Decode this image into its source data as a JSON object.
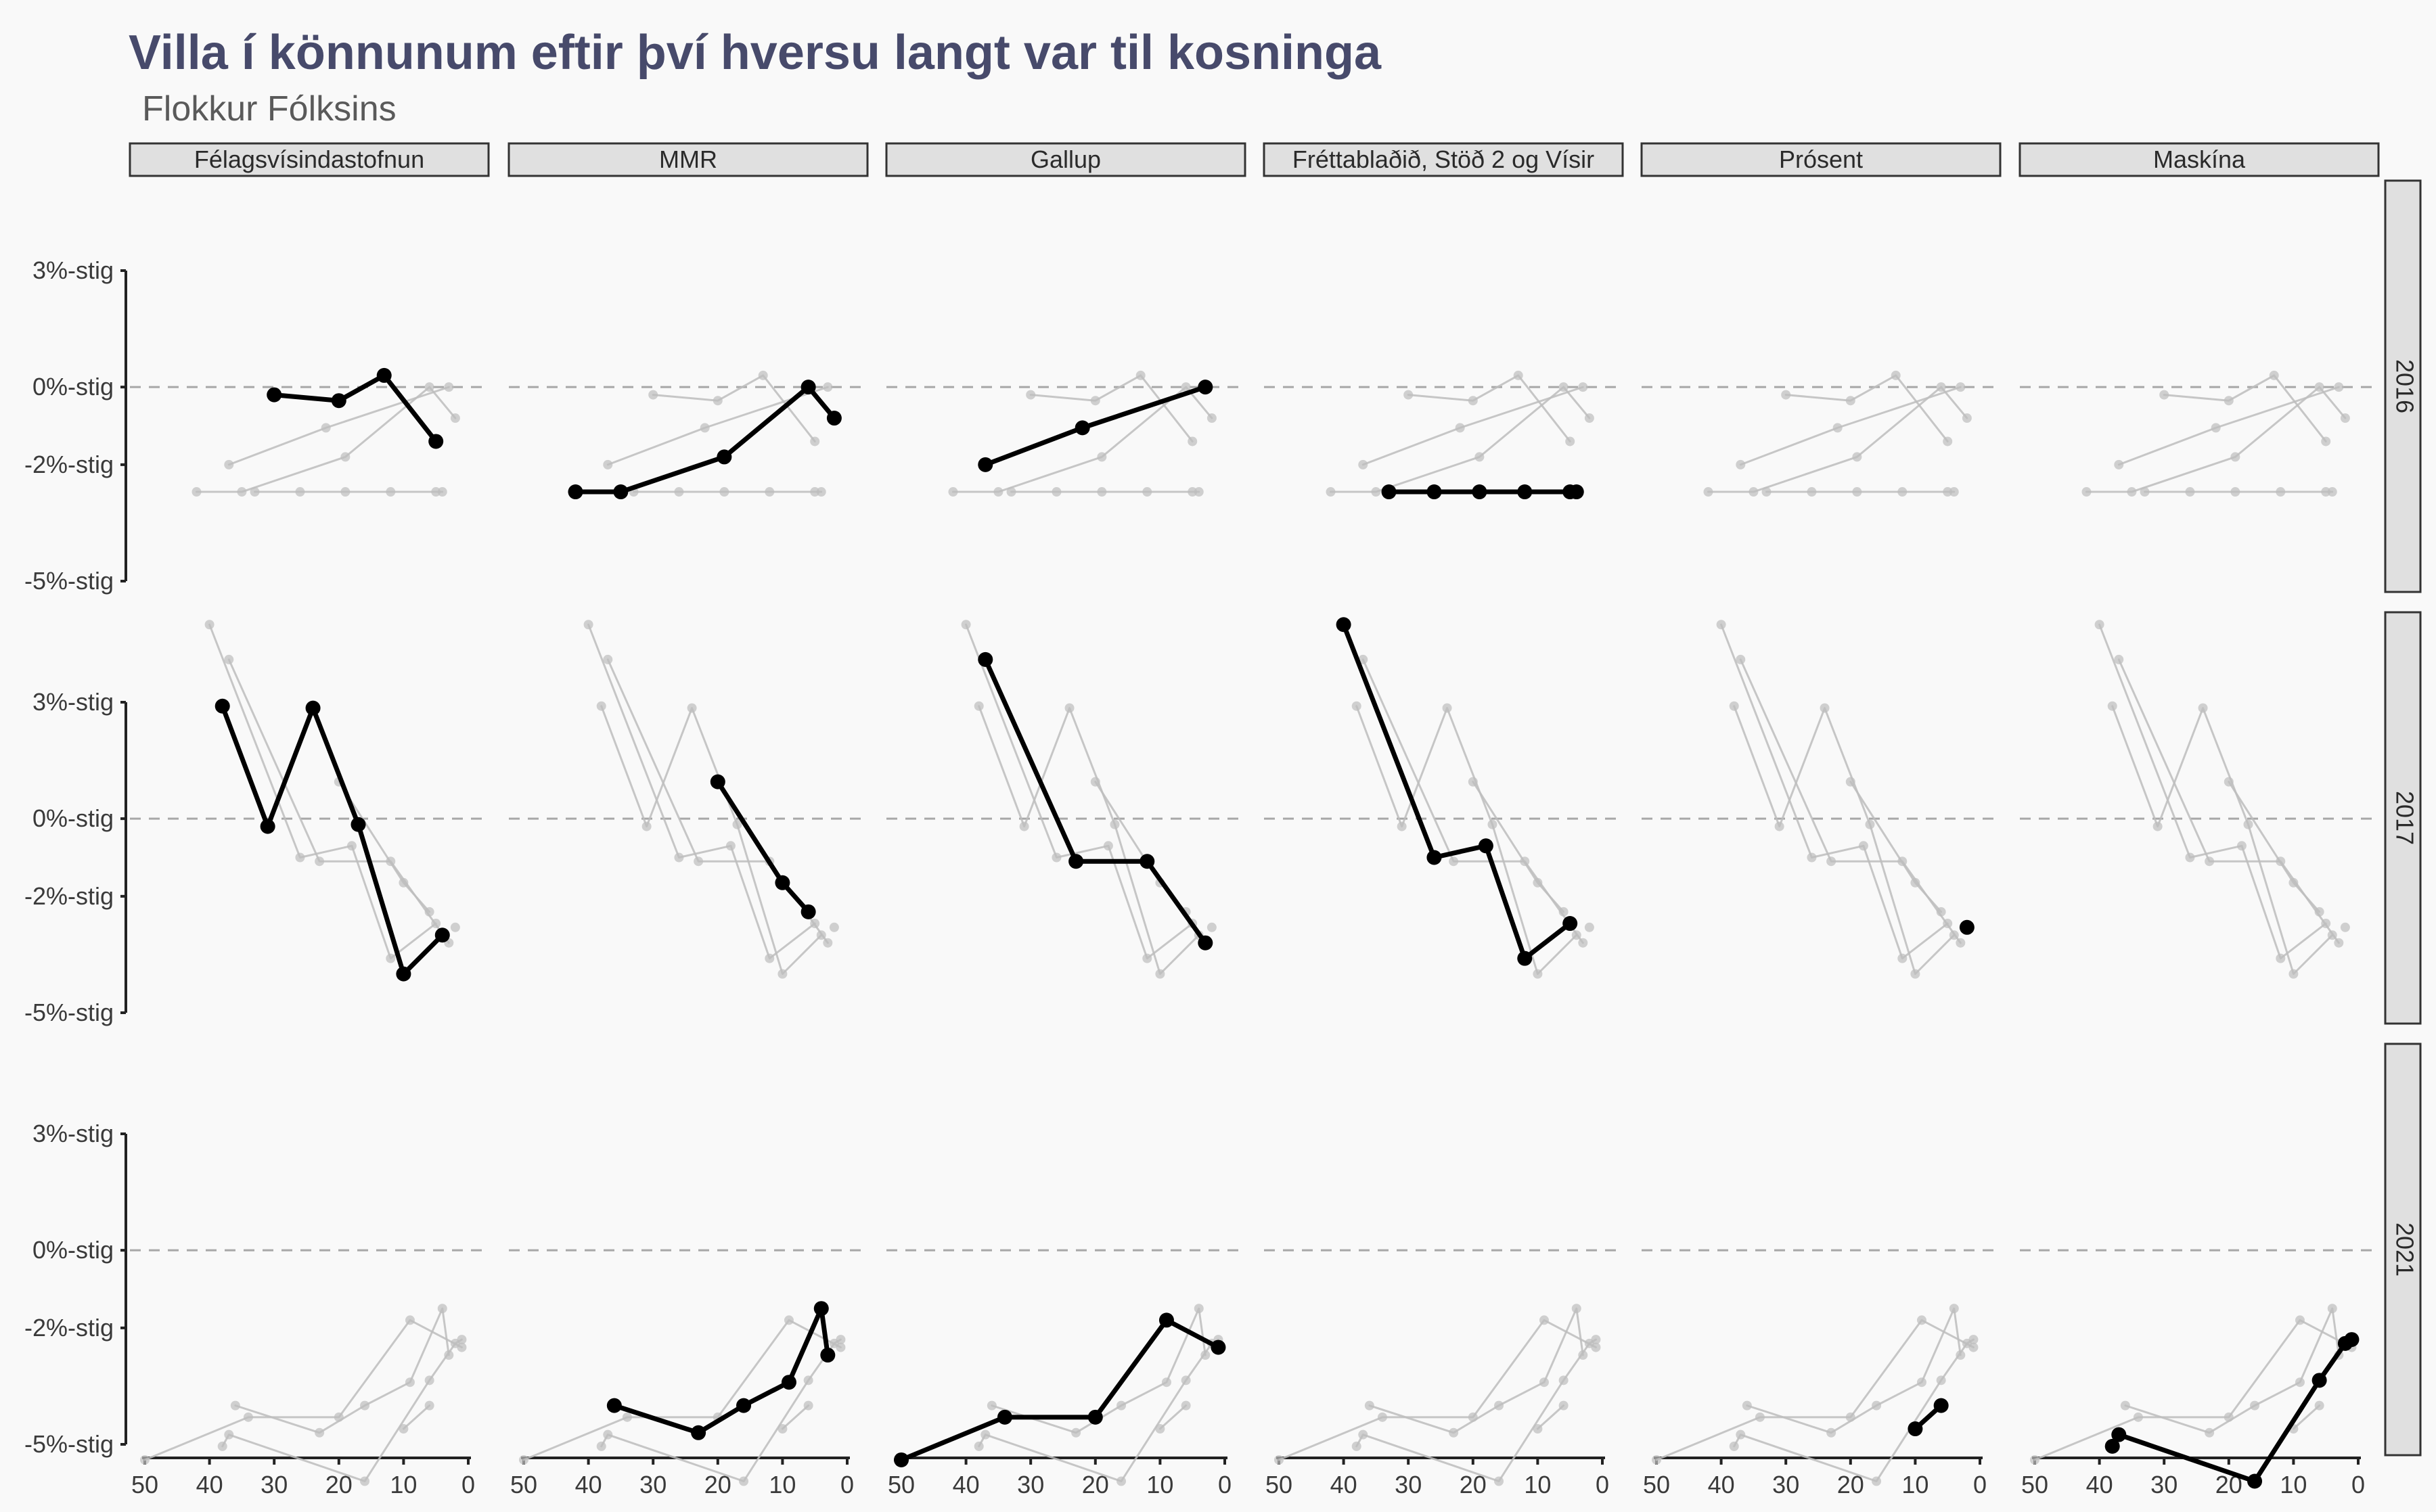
{
  "chart_data": {
    "type": "line",
    "title": "Villa í könnunum eftir því hversu langt var til kosninga",
    "subtitle": "Flokkur Fólksins",
    "xlabel": "",
    "ylabel": "",
    "xlim": [
      50,
      0
    ],
    "x_reversed": true,
    "x_ticks": [
      "50",
      "40",
      "30",
      "20",
      "10",
      "0"
    ],
    "ylim": [
      -5,
      4
    ],
    "y_ticks": [
      "3%-stig",
      "0%-stig",
      "-2%-stig",
      "-5%-stig"
    ],
    "y_tick_values": [
      3,
      0,
      -2,
      -5
    ],
    "reference_line": 0,
    "grid": false,
    "columns": [
      "Félagsvísindastofnun",
      "MMR",
      "Gallup",
      "Fréttablaðið, Stöð 2 og Vísir",
      "Prósent",
      "Maskína"
    ],
    "rows": [
      "2016",
      "2017",
      "2021"
    ],
    "series": [
      {
        "pollster": "Félagsvísindastofnun",
        "year": "2016",
        "x": [
          30,
          20,
          13,
          5
        ],
        "y": [
          -0.2,
          -0.35,
          0.3,
          -1.4
        ]
      },
      {
        "pollster": "MMR",
        "year": "2016",
        "x": [
          42,
          35,
          19,
          6,
          2
        ],
        "y": [
          -2.7,
          -2.7,
          -1.8,
          0.0,
          -0.8
        ]
      },
      {
        "pollster": "Gallup",
        "year": "2016",
        "x": [
          37,
          22,
          3
        ],
        "y": [
          -2.0,
          -1.05,
          0.0
        ]
      },
      {
        "pollster": "Fréttablaðið, Stöð 2 og Vísir",
        "year": "2016",
        "x": [
          33,
          26,
          19,
          12,
          5,
          4
        ],
        "y": [
          -2.7,
          -2.7,
          -2.7,
          -2.7,
          -2.7,
          -2.7
        ]
      },
      {
        "pollster": "Félagsvísindastofnun",
        "year": "2017",
        "x": [
          38,
          31,
          24,
          17,
          10,
          4
        ],
        "y": [
          2.9,
          -0.2,
          2.85,
          -0.15,
          -4.0,
          -3.0
        ]
      },
      {
        "pollster": "MMR",
        "year": "2017",
        "x": [
          20,
          10,
          6
        ],
        "y": [
          0.95,
          -1.65,
          -2.4
        ]
      },
      {
        "pollster": "Gallup",
        "year": "2017",
        "x": [
          37,
          23,
          12,
          3
        ],
        "y": [
          4.1,
          -1.1,
          -1.1,
          -3.2
        ]
      },
      {
        "pollster": "Fréttablaðið, Stöð 2 og Vísir",
        "year": "2017",
        "x": [
          40,
          26,
          18,
          12,
          5
        ],
        "y": [
          5.0,
          -1.0,
          -0.7,
          -3.6,
          -2.7
        ]
      },
      {
        "pollster": "Prósent",
        "year": "2017",
        "x": [
          2
        ],
        "y": [
          -2.8
        ]
      },
      {
        "pollster": "MMR",
        "year": "2021",
        "x": [
          36,
          23,
          16,
          9,
          4,
          3
        ],
        "y": [
          -4.0,
          -4.7,
          -4.0,
          -3.4,
          -1.5,
          -2.7
        ]
      },
      {
        "pollster": "Gallup",
        "year": "2021",
        "x": [
          50,
          34,
          20,
          9,
          1
        ],
        "y": [
          -5.4,
          -4.3,
          -4.3,
          -1.8,
          -2.5
        ]
      },
      {
        "pollster": "Prósent",
        "year": "2021",
        "x": [
          10,
          6
        ],
        "y": [
          -4.6,
          -4.0
        ]
      },
      {
        "pollster": "Maskína",
        "year": "2021",
        "x": [
          38,
          37,
          16,
          6,
          2,
          1
        ],
        "y": [
          -5.05,
          -4.75,
          -5.95,
          -3.35,
          -2.4,
          -2.3
        ]
      }
    ],
    "colors": {
      "highlight": "#000000",
      "context": "#bdbdbd",
      "refline": "#a8a8a8",
      "strip_fill": "#e0e0e0",
      "title": "#474a6b"
    }
  }
}
